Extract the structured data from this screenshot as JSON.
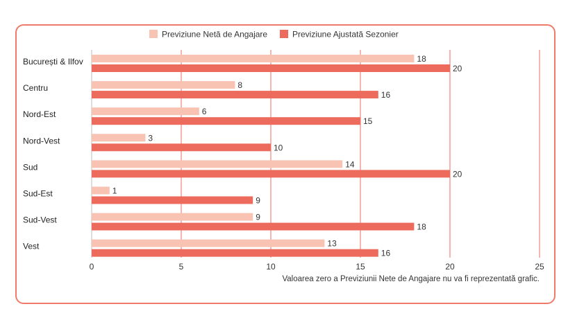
{
  "chart_data": {
    "type": "bar",
    "orientation": "horizontal",
    "categories": [
      "București & Ilfov",
      "Centru",
      "Nord-Est",
      "Nord-Vest",
      "Sud",
      "Sud-Est",
      "Sud-Vest",
      "Vest"
    ],
    "series": [
      {
        "name": "Previziune Netă de Angajare",
        "color": "#f8c3b3",
        "values": [
          18,
          8,
          6,
          3,
          14,
          1,
          9,
          13
        ]
      },
      {
        "name": "Previziune Ajustată Sezonier",
        "color": "#ec6b5c",
        "values": [
          20,
          16,
          15,
          10,
          20,
          9,
          18,
          16
        ]
      }
    ],
    "xlim": [
      0,
      25
    ],
    "xticks": [
      0,
      5,
      10,
      15,
      20,
      25
    ],
    "grid": "vertical",
    "legend_position": "top",
    "note": "Valoarea zero a Previziunii Nete de Angajare nu va fi reprezentată grafic."
  },
  "colors": {
    "frame": "#f07a6a",
    "grid": "#ec6b5c"
  }
}
